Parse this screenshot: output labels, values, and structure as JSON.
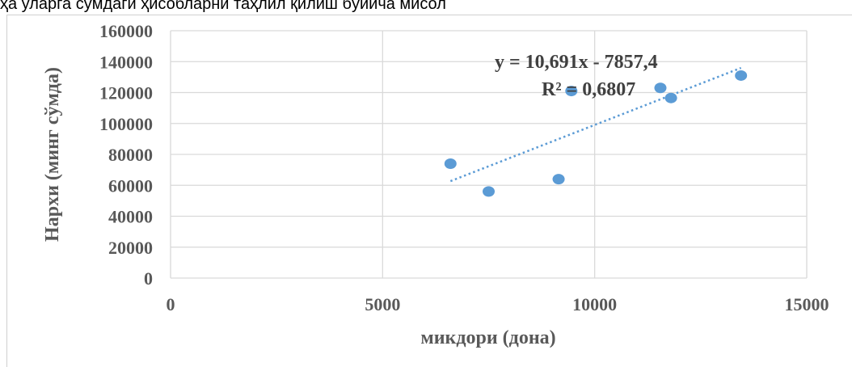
{
  "page_text": {
    "top_line": "ҳа уларга сўмдаги ҳисобларни таҳлил қилиш бўйича мисол"
  },
  "chart_data": {
    "type": "scatter",
    "title": "",
    "xlabel": "микдори (дона)",
    "ylabel": "Нархи (минг сўмда)",
    "xlim": [
      0,
      15000
    ],
    "ylim": [
      0,
      160000
    ],
    "x_ticks": [
      0,
      5000,
      10000,
      15000
    ],
    "y_ticks": [
      0,
      20000,
      40000,
      60000,
      80000,
      100000,
      120000,
      140000,
      160000
    ],
    "x_tick_labels": [
      "0",
      "5000",
      "10000",
      "15000"
    ],
    "y_tick_labels": [
      "0",
      "20000",
      "40000",
      "60000",
      "80000",
      "100000",
      "120000",
      "140000",
      "160000"
    ],
    "grid": true,
    "legend": "none",
    "series": [
      {
        "points": [
          {
            "x": 6600,
            "y": 74000
          },
          {
            "x": 7500,
            "y": 56000
          },
          {
            "x": 9150,
            "y": 64000
          },
          {
            "x": 9450,
            "y": 121000
          },
          {
            "x": 11550,
            "y": 123000
          },
          {
            "x": 11800,
            "y": 116500
          },
          {
            "x": 13450,
            "y": 131000
          }
        ],
        "color": "#5b9bd5"
      }
    ],
    "trendline": {
      "type": "linear",
      "slope": 10.691,
      "intercept": -7857.4,
      "x_range": [
        6600,
        13450
      ],
      "color": "#5b9bd5",
      "equation_label": "y = 10,691x - 7857,4",
      "r2_label": "R² = 0,6807"
    }
  }
}
